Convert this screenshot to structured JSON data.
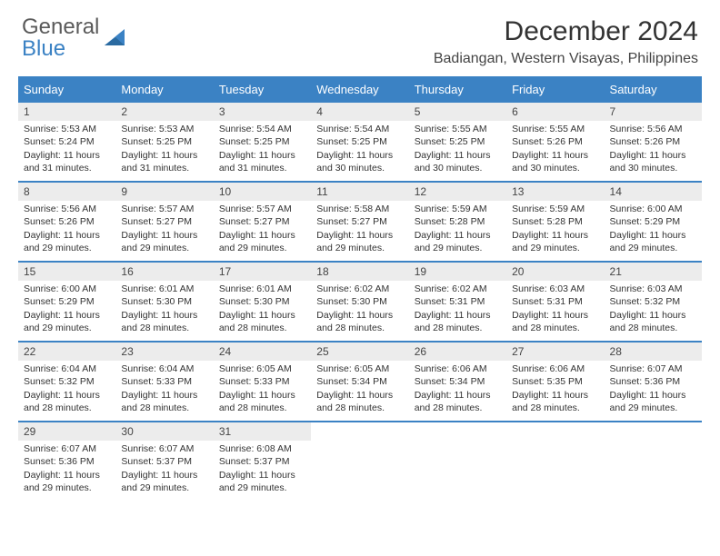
{
  "brand": {
    "top": "General",
    "bottom": "Blue"
  },
  "title": "December 2024",
  "location": "Badiangan, Western Visayas, Philippines",
  "colors": {
    "accent": "#3b82c4",
    "headerRowBg": "#ececec"
  },
  "dayNames": [
    "Sunday",
    "Monday",
    "Tuesday",
    "Wednesday",
    "Thursday",
    "Friday",
    "Saturday"
  ],
  "labels": {
    "sunrise": "Sunrise:",
    "sunset": "Sunset:",
    "daylight": "Daylight:"
  },
  "days": [
    {
      "n": "1",
      "sr": "5:53 AM",
      "ss": "5:24 PM",
      "dl": "11 hours and 31 minutes."
    },
    {
      "n": "2",
      "sr": "5:53 AM",
      "ss": "5:25 PM",
      "dl": "11 hours and 31 minutes."
    },
    {
      "n": "3",
      "sr": "5:54 AM",
      "ss": "5:25 PM",
      "dl": "11 hours and 31 minutes."
    },
    {
      "n": "4",
      "sr": "5:54 AM",
      "ss": "5:25 PM",
      "dl": "11 hours and 30 minutes."
    },
    {
      "n": "5",
      "sr": "5:55 AM",
      "ss": "5:25 PM",
      "dl": "11 hours and 30 minutes."
    },
    {
      "n": "6",
      "sr": "5:55 AM",
      "ss": "5:26 PM",
      "dl": "11 hours and 30 minutes."
    },
    {
      "n": "7",
      "sr": "5:56 AM",
      "ss": "5:26 PM",
      "dl": "11 hours and 30 minutes."
    },
    {
      "n": "8",
      "sr": "5:56 AM",
      "ss": "5:26 PM",
      "dl": "11 hours and 29 minutes."
    },
    {
      "n": "9",
      "sr": "5:57 AM",
      "ss": "5:27 PM",
      "dl": "11 hours and 29 minutes."
    },
    {
      "n": "10",
      "sr": "5:57 AM",
      "ss": "5:27 PM",
      "dl": "11 hours and 29 minutes."
    },
    {
      "n": "11",
      "sr": "5:58 AM",
      "ss": "5:27 PM",
      "dl": "11 hours and 29 minutes."
    },
    {
      "n": "12",
      "sr": "5:59 AM",
      "ss": "5:28 PM",
      "dl": "11 hours and 29 minutes."
    },
    {
      "n": "13",
      "sr": "5:59 AM",
      "ss": "5:28 PM",
      "dl": "11 hours and 29 minutes."
    },
    {
      "n": "14",
      "sr": "6:00 AM",
      "ss": "5:29 PM",
      "dl": "11 hours and 29 minutes."
    },
    {
      "n": "15",
      "sr": "6:00 AM",
      "ss": "5:29 PM",
      "dl": "11 hours and 29 minutes."
    },
    {
      "n": "16",
      "sr": "6:01 AM",
      "ss": "5:30 PM",
      "dl": "11 hours and 28 minutes."
    },
    {
      "n": "17",
      "sr": "6:01 AM",
      "ss": "5:30 PM",
      "dl": "11 hours and 28 minutes."
    },
    {
      "n": "18",
      "sr": "6:02 AM",
      "ss": "5:30 PM",
      "dl": "11 hours and 28 minutes."
    },
    {
      "n": "19",
      "sr": "6:02 AM",
      "ss": "5:31 PM",
      "dl": "11 hours and 28 minutes."
    },
    {
      "n": "20",
      "sr": "6:03 AM",
      "ss": "5:31 PM",
      "dl": "11 hours and 28 minutes."
    },
    {
      "n": "21",
      "sr": "6:03 AM",
      "ss": "5:32 PM",
      "dl": "11 hours and 28 minutes."
    },
    {
      "n": "22",
      "sr": "6:04 AM",
      "ss": "5:32 PM",
      "dl": "11 hours and 28 minutes."
    },
    {
      "n": "23",
      "sr": "6:04 AM",
      "ss": "5:33 PM",
      "dl": "11 hours and 28 minutes."
    },
    {
      "n": "24",
      "sr": "6:05 AM",
      "ss": "5:33 PM",
      "dl": "11 hours and 28 minutes."
    },
    {
      "n": "25",
      "sr": "6:05 AM",
      "ss": "5:34 PM",
      "dl": "11 hours and 28 minutes."
    },
    {
      "n": "26",
      "sr": "6:06 AM",
      "ss": "5:34 PM",
      "dl": "11 hours and 28 minutes."
    },
    {
      "n": "27",
      "sr": "6:06 AM",
      "ss": "5:35 PM",
      "dl": "11 hours and 28 minutes."
    },
    {
      "n": "28",
      "sr": "6:07 AM",
      "ss": "5:36 PM",
      "dl": "11 hours and 29 minutes."
    },
    {
      "n": "29",
      "sr": "6:07 AM",
      "ss": "5:36 PM",
      "dl": "11 hours and 29 minutes."
    },
    {
      "n": "30",
      "sr": "6:07 AM",
      "ss": "5:37 PM",
      "dl": "11 hours and 29 minutes."
    },
    {
      "n": "31",
      "sr": "6:08 AM",
      "ss": "5:37 PM",
      "dl": "11 hours and 29 minutes."
    }
  ]
}
